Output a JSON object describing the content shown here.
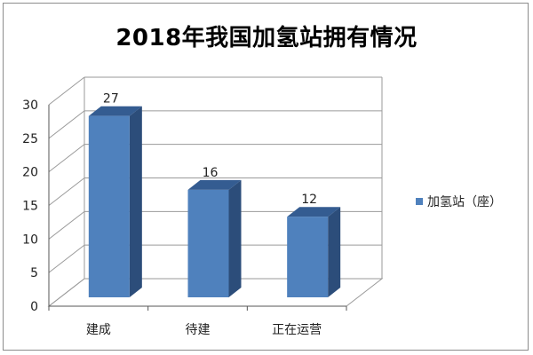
{
  "chart_data": {
    "type": "bar",
    "title": "2018年我国加氢站拥有情况",
    "categories": [
      "建成",
      "待建",
      "正在运营"
    ],
    "series": [
      {
        "name": "加氢站（座）",
        "values": [
          27,
          16,
          12
        ]
      }
    ],
    "data_labels": [
      "27",
      "16",
      "12"
    ],
    "ylim": [
      0,
      30
    ],
    "yticks": [
      0,
      5,
      10,
      15,
      20,
      25,
      30
    ],
    "grid": true,
    "legend": "right",
    "style": "3d-column",
    "colors": {
      "bar_front": "#4f81bd",
      "bar_side": "#2c4d7a",
      "bar_top": "#345c91",
      "grid": "#9a9a9a",
      "axis": "#555555"
    }
  }
}
